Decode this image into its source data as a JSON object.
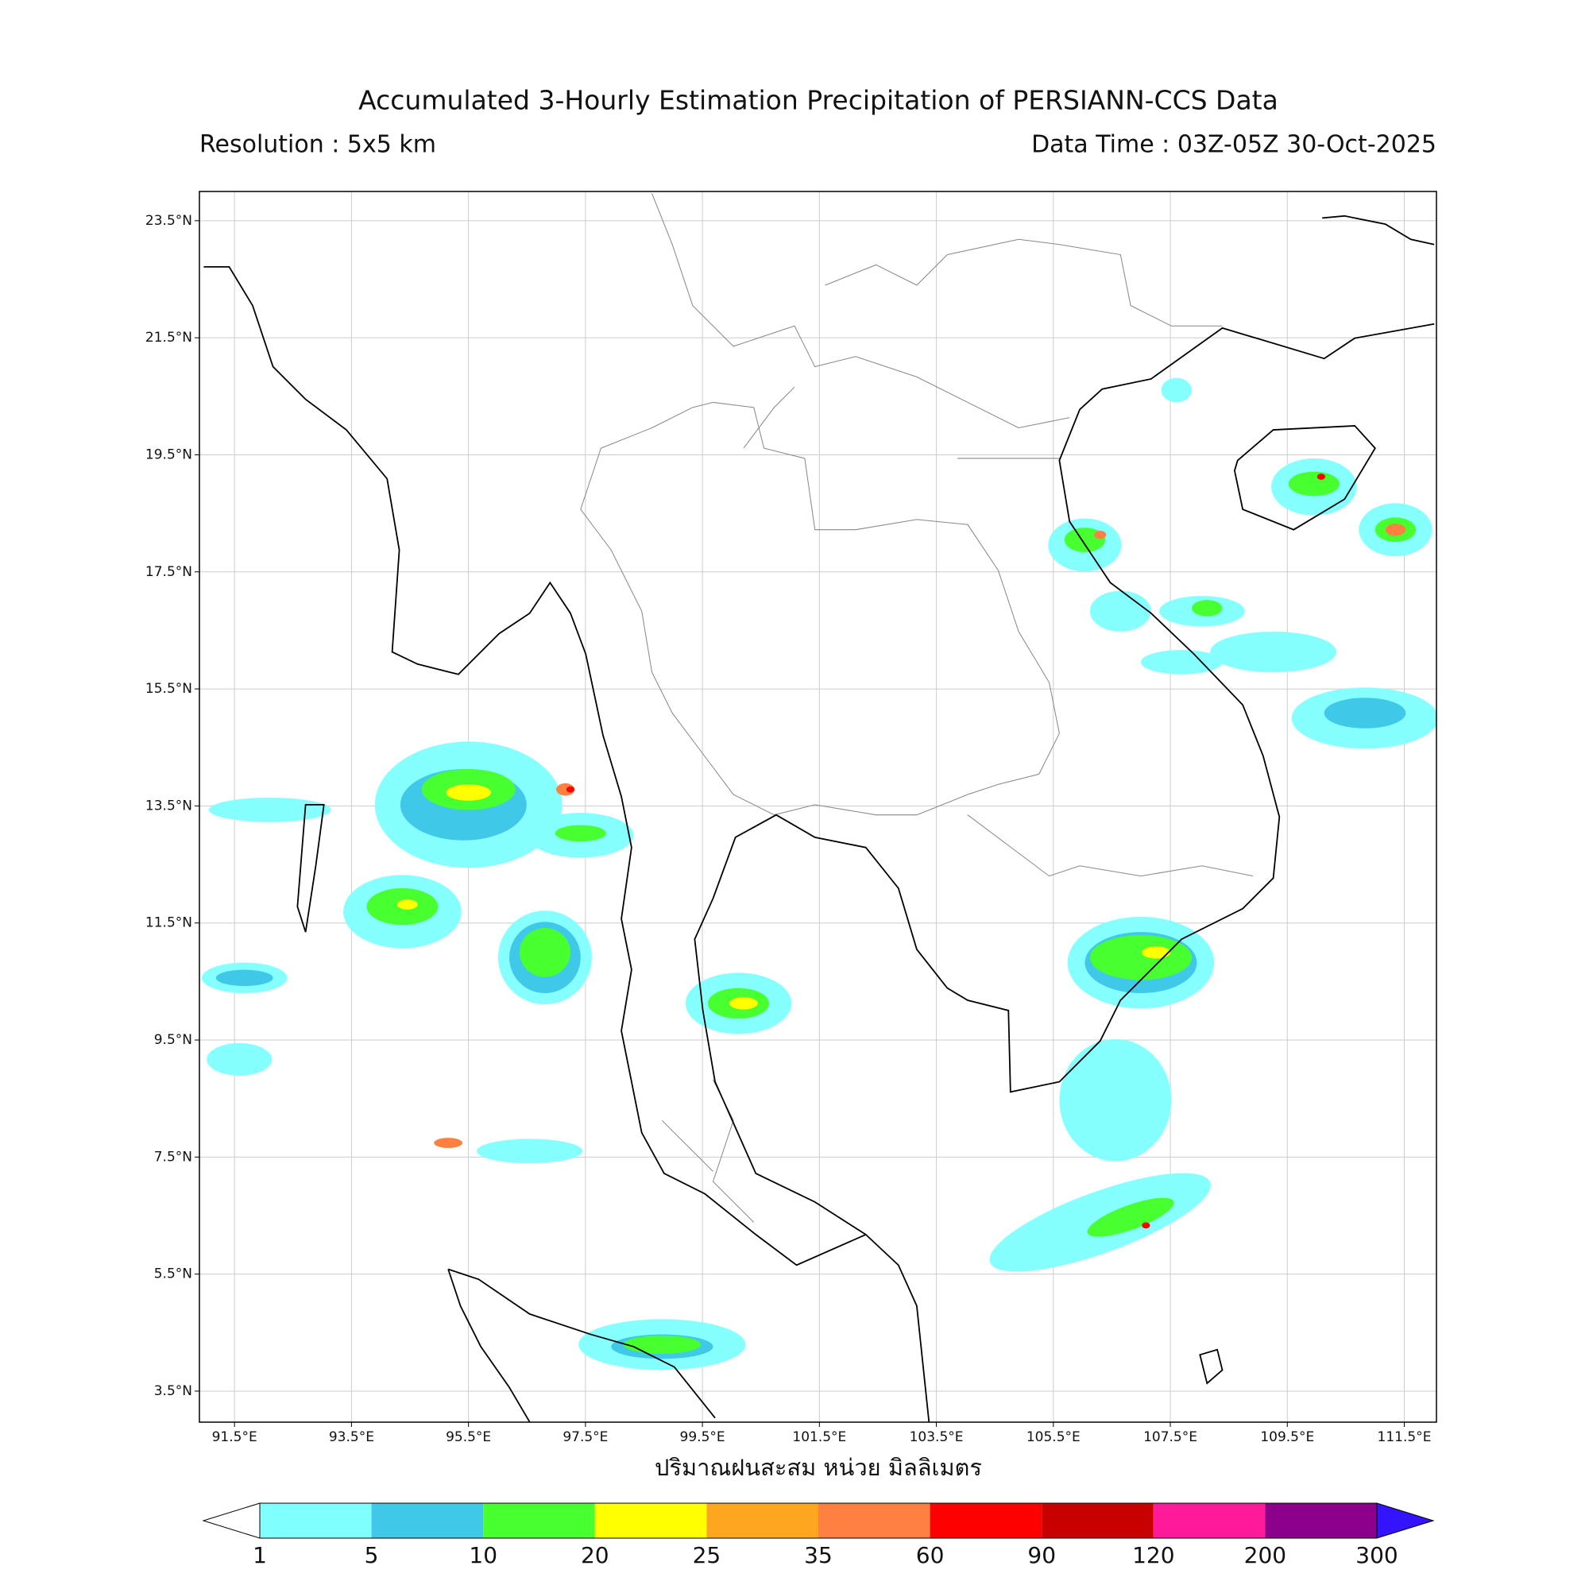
{
  "header": {
    "title": "Accumulated 3-Hourly Estimation Precipitation of PERSIANN-CCS Data",
    "resolution": "Resolution : 5x5 km",
    "data_time": "Data Time : 03Z-05Z 30-Oct-2025"
  },
  "map": {
    "lonlim": [
      90.9,
      112.05
    ],
    "latlim": [
      2.97,
      24.0
    ],
    "grid": true,
    "lat_ticks": [
      {
        "value": 23.5,
        "label": "23.5°N"
      },
      {
        "value": 21.5,
        "label": "21.5°N"
      },
      {
        "value": 19.5,
        "label": "19.5°N"
      },
      {
        "value": 17.5,
        "label": "17.5°N"
      },
      {
        "value": 15.5,
        "label": "15.5°N"
      },
      {
        "value": 13.5,
        "label": "13.5°N"
      },
      {
        "value": 11.5,
        "label": "11.5°N"
      },
      {
        "value": 9.5,
        "label": "9.5°N"
      },
      {
        "value": 7.5,
        "label": "7.5°N"
      },
      {
        "value": 5.5,
        "label": "5.5°N"
      },
      {
        "value": 3.5,
        "label": "3.5°N"
      }
    ],
    "lon_ticks": [
      {
        "value": 91.5,
        "label": "91.5°E"
      },
      {
        "value": 93.5,
        "label": "93.5°E"
      },
      {
        "value": 95.5,
        "label": "95.5°E"
      },
      {
        "value": 97.5,
        "label": "97.5°E"
      },
      {
        "value": 99.5,
        "label": "99.5°E"
      },
      {
        "value": 101.5,
        "label": "101.5°E"
      },
      {
        "value": 103.5,
        "label": "103.5°E"
      },
      {
        "value": 105.5,
        "label": "105.5°E"
      },
      {
        "value": 107.5,
        "label": "107.5°E"
      },
      {
        "value": 109.5,
        "label": "109.5°E"
      },
      {
        "value": 111.5,
        "label": "111.5°E"
      }
    ],
    "xlabel": "ปริมาณฝนสะสม หน่วย มิลลิเมตร"
  },
  "colorbar": {
    "levels": [
      1,
      5,
      10,
      20,
      25,
      35,
      60,
      90,
      120,
      200,
      300
    ],
    "colors": [
      "#80ffff",
      "#40c8e8",
      "#48ff30",
      "#ffff00",
      "#ffa620",
      "#ff8040",
      "#ff0000",
      "#c80000",
      "#ff1a9a",
      "#8b008b",
      "#3414ff"
    ]
  }
}
